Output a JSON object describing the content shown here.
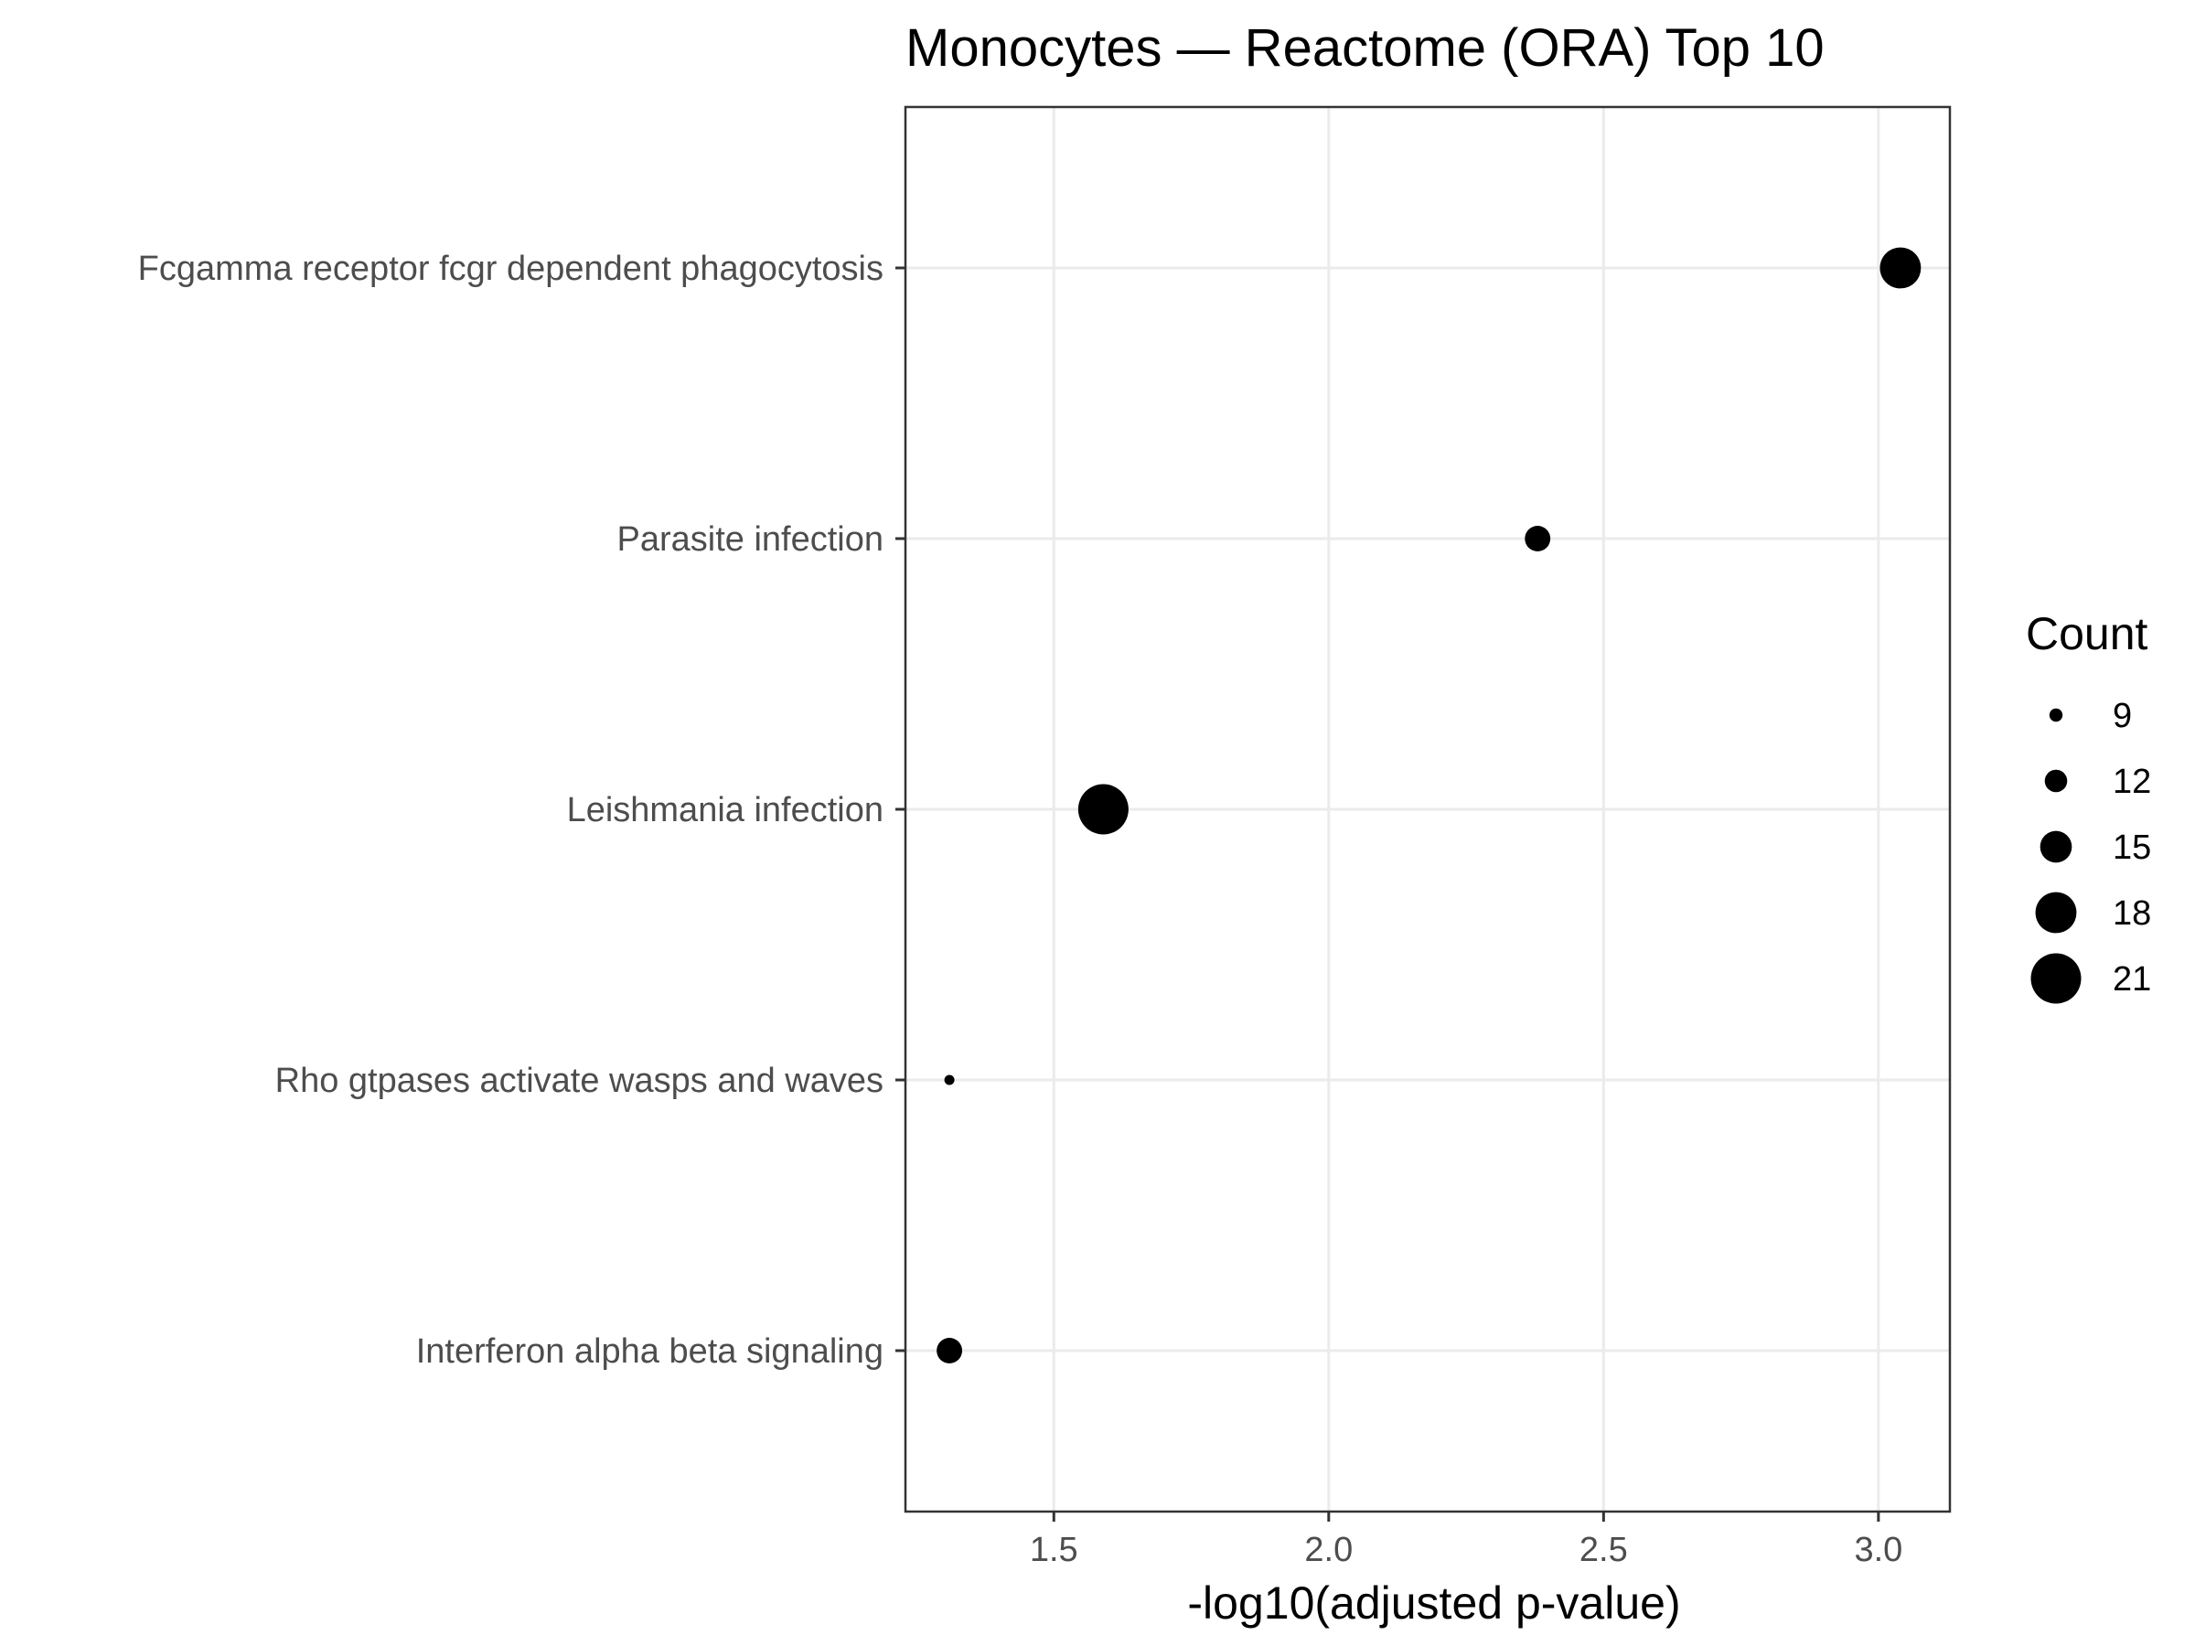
{
  "chart_data": {
    "type": "scatter",
    "title": "Monocytes — Reactome (ORA) Top 10",
    "xlabel": "-log10(adjusted p-value)",
    "ylabel": "",
    "xlim": [
      1.23,
      3.13
    ],
    "x_ticks": [
      "1.5",
      "2.0",
      "2.5",
      "3.0"
    ],
    "categories": [
      "Fcgamma receptor fcgr dependent phagocytosis",
      "Parasite infection",
      "Leishmania infection",
      "Rho gtpases activate wasps and waves",
      "Interferon alpha beta signaling"
    ],
    "points": [
      {
        "label": "Fcgamma receptor fcgr dependent phagocytosis",
        "x": 3.04,
        "count": 18
      },
      {
        "label": "Parasite infection",
        "x": 2.38,
        "count": 13
      },
      {
        "label": "Leishmania infection",
        "x": 1.59,
        "count": 21
      },
      {
        "label": "Rho gtpases activate wasps and waves",
        "x": 1.31,
        "count": 8
      },
      {
        "label": "Interferon alpha beta signaling",
        "x": 1.31,
        "count": 13
      }
    ],
    "size_legend": {
      "title": "Count",
      "entries": [
        {
          "label": "9",
          "value": 9
        },
        {
          "label": "12",
          "value": 12
        },
        {
          "label": "15",
          "value": 15
        },
        {
          "label": "18",
          "value": 18
        },
        {
          "label": "21",
          "value": 21
        }
      ]
    },
    "grid": true,
    "legend_position": "right",
    "point_color": "#000000"
  }
}
